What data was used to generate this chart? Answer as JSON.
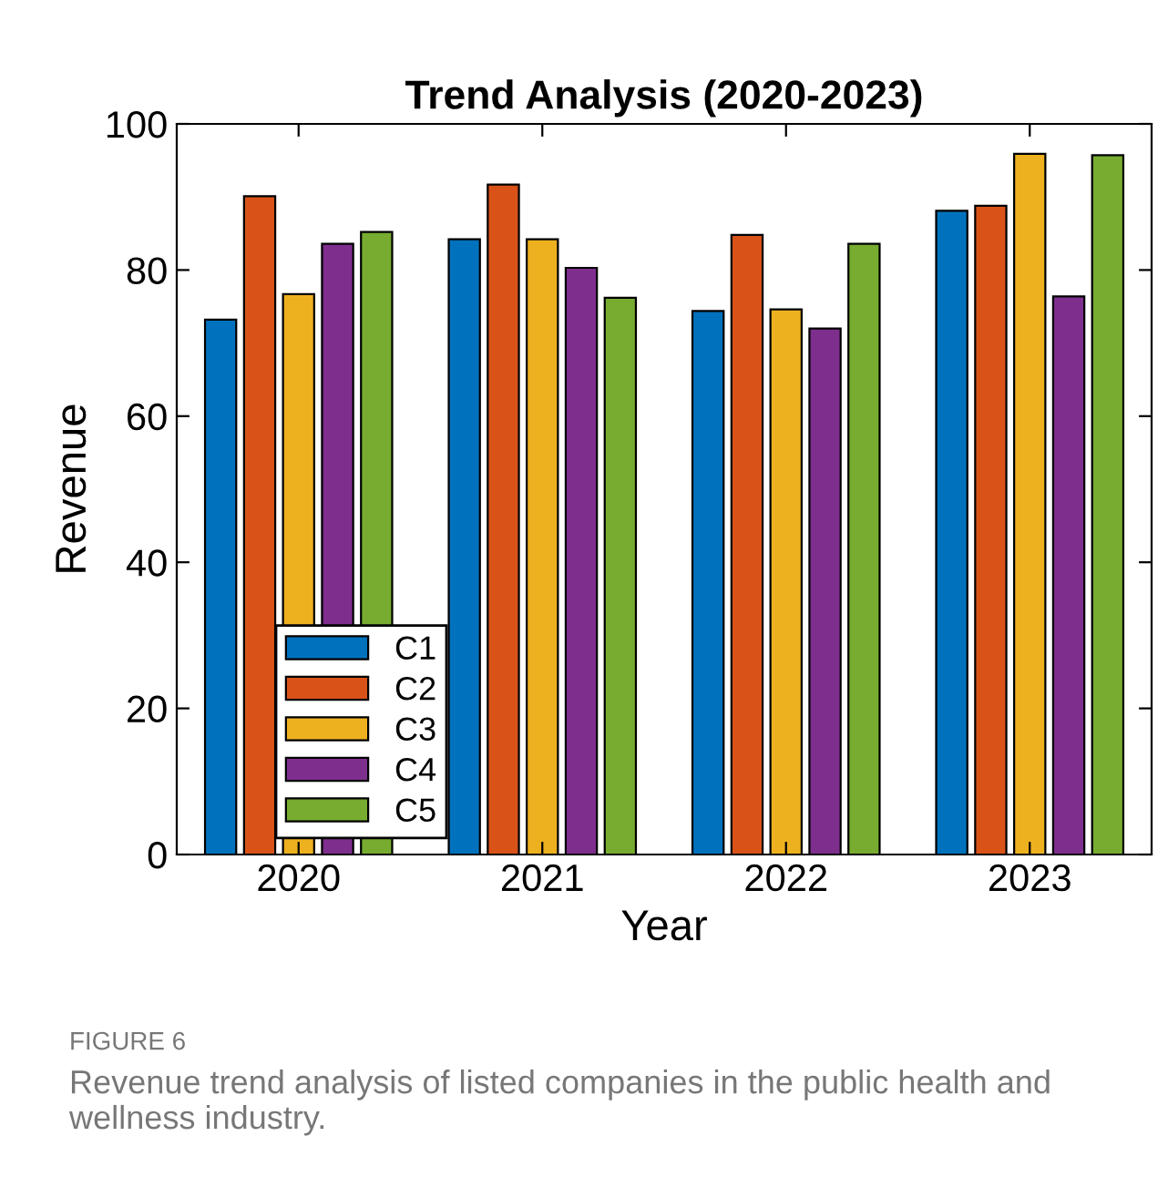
{
  "chart_data": {
    "type": "bar",
    "title": "Trend Analysis (2020-2023)",
    "xlabel": "Year",
    "ylabel": "Revenue",
    "categories": [
      "2020",
      "2021",
      "2022",
      "2023"
    ],
    "series": [
      {
        "name": "C1",
        "color": "#0072bd",
        "values": [
          73.2,
          84.2,
          74.4,
          88.1
        ]
      },
      {
        "name": "C2",
        "color": "#d95319",
        "values": [
          90.1,
          91.7,
          84.8,
          88.8
        ]
      },
      {
        "name": "C3",
        "color": "#edb120",
        "values": [
          76.7,
          84.2,
          74.6,
          95.9
        ]
      },
      {
        "name": "C4",
        "color": "#7e2f8e",
        "values": [
          83.6,
          80.3,
          72.0,
          76.4
        ]
      },
      {
        "name": "C5",
        "color": "#77ac30",
        "values": [
          85.2,
          76.2,
          83.6,
          95.7
        ]
      }
    ],
    "ylim": [
      0,
      100
    ],
    "yticks": [
      0,
      20,
      40,
      60,
      80,
      100
    ],
    "grid": false,
    "legend": "bottom left",
    "annotations": [
      "FIGURE 6",
      "Revenue trend analysis of listed companies in the public health and wellness industry."
    ]
  }
}
